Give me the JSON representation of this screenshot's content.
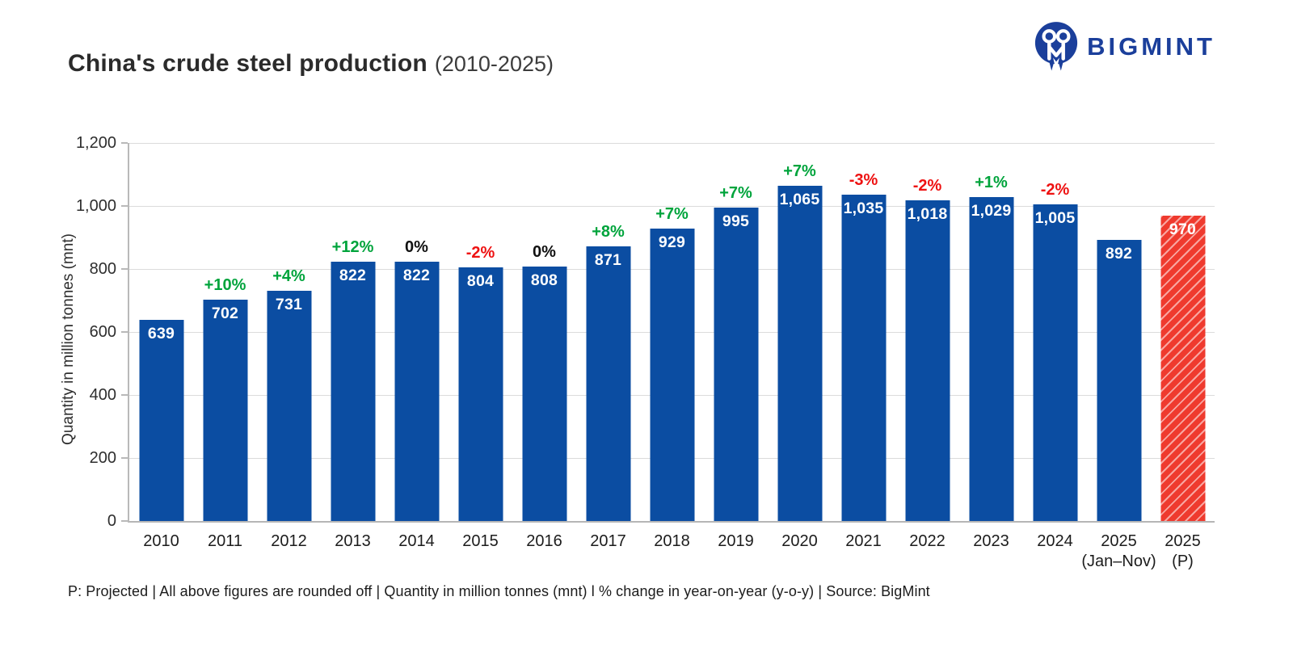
{
  "header": {
    "title": "China's crude steel production",
    "subtitle": "(2010-2025)",
    "brand": {
      "name": "BIGMINT",
      "icon": "bigmint-people-monogram-icon"
    }
  },
  "footer": {
    "note": "P: Projected | All above figures are rounded off | Quantity in million tonnes (mnt) l % change in year-on-year (y-o-y) | Source: BigMint"
  },
  "chart_data": {
    "type": "bar",
    "title": "China's crude steel production (2010-2025)",
    "ylabel": "Quantity in million tonnes (mnt)",
    "xlabel": "",
    "ylim": [
      0,
      1200
    ],
    "yticks": [
      0,
      200,
      400,
      600,
      800,
      1000,
      1200
    ],
    "ytick_labels": [
      "0",
      "200",
      "400",
      "600",
      "800",
      "1,000",
      "1,200"
    ],
    "grid": "horizontal-only",
    "legend": "none",
    "categories": [
      "2010",
      "2011",
      "2012",
      "2013",
      "2014",
      "2015",
      "2016",
      "2017",
      "2018",
      "2019",
      "2020",
      "2021",
      "2022",
      "2023",
      "2024",
      "2025",
      "2025"
    ],
    "category_sublabels": [
      "",
      "",
      "",
      "",
      "",
      "",
      "",
      "",
      "",
      "",
      "",
      "",
      "",
      "",
      "",
      "(Jan–Nov)",
      "(P)"
    ],
    "values": [
      639,
      702,
      731,
      822,
      822,
      804,
      808,
      871,
      929,
      995,
      1065,
      1035,
      1018,
      1029,
      1005,
      892,
      970
    ],
    "value_labels": [
      "639",
      "702",
      "731",
      "822",
      "822",
      "804",
      "808",
      "871",
      "929",
      "995",
      "1,065",
      "1,035",
      "1,018",
      "1,029",
      "1,005",
      "892",
      "970"
    ],
    "yoy_change": [
      "",
      "+10%",
      "+4%",
      "+12%",
      "0%",
      "-2%",
      "0%",
      "+8%",
      "+7%",
      "+7%",
      "+7%",
      "-3%",
      "-2%",
      "+1%",
      "-2%",
      "",
      ""
    ],
    "is_projected": [
      false,
      false,
      false,
      false,
      false,
      false,
      false,
      false,
      false,
      false,
      false,
      false,
      false,
      false,
      false,
      false,
      true
    ],
    "colors": {
      "bar": "#0B4DA2",
      "projected_bar": "#EF3A2E",
      "positive_change": "#00A43C",
      "negative_change": "#EE1111",
      "zero_change": "#111111",
      "logo_blue": "#1B3F9B"
    }
  }
}
